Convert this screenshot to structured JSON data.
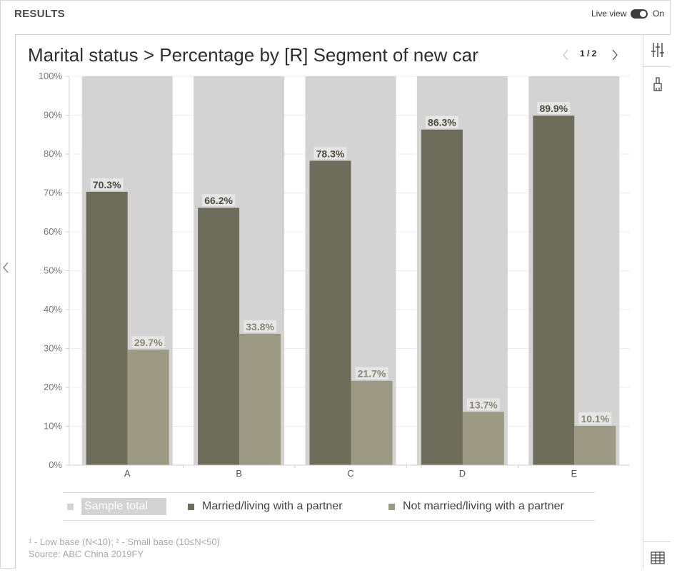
{
  "header": {
    "title": "RESULTS",
    "live_view_label": "Live view",
    "live_view_state": "On",
    "live_view_on": true
  },
  "chart_title": "Marital status > Percentage by [R] Segment of new car",
  "pager": {
    "text": "1 / 2"
  },
  "colors": {
    "sample_total": "#d3d3d3",
    "married": "#6e6c5a",
    "not_married": "#9c9984",
    "grid": "#ececec",
    "axis_text": "#777777"
  },
  "chart_data": {
    "type": "bar",
    "title": "Marital status > Percentage by [R] Segment of new car",
    "xlabel": "",
    "ylabel": "",
    "ylim": [
      0,
      100
    ],
    "y_ticks": [
      "0%",
      "10%",
      "20%",
      "30%",
      "40%",
      "50%",
      "60%",
      "70%",
      "80%",
      "90%",
      "100%"
    ],
    "categories": [
      "A",
      "B",
      "C",
      "D",
      "E"
    ],
    "background_series": {
      "name": "Sample total",
      "values": [
        100,
        100,
        100,
        100,
        100
      ]
    },
    "series": [
      {
        "name": "Married/living with a partner",
        "values": [
          70.3,
          66.2,
          78.3,
          86.3,
          89.9
        ],
        "labels": [
          "70.3%",
          "66.2%",
          "78.3%",
          "86.3%",
          "89.9%"
        ]
      },
      {
        "name": "Not married/living with a partner",
        "values": [
          29.7,
          33.8,
          21.7,
          13.7,
          10.1
        ],
        "labels": [
          "29.7%",
          "33.8%",
          "21.7%",
          "13.7%",
          "10.1%"
        ]
      }
    ],
    "grid": true,
    "legend_position": "bottom"
  },
  "legend": [
    {
      "label": "Sample total",
      "color": "#d3d3d3"
    },
    {
      "label": "Married/living with a partner",
      "color": "#6e6c5a"
    },
    {
      "label": "Not married/living with a partner",
      "color": "#9c9984"
    }
  ],
  "footnotes": {
    "bases": "¹ - Low base (N<10);   ² - Small base (10≤N<50)",
    "source": "Source: ABC China 2019FY"
  },
  "toolbar_icons": [
    "sliders-icon",
    "brush-icon",
    "table-icon"
  ]
}
